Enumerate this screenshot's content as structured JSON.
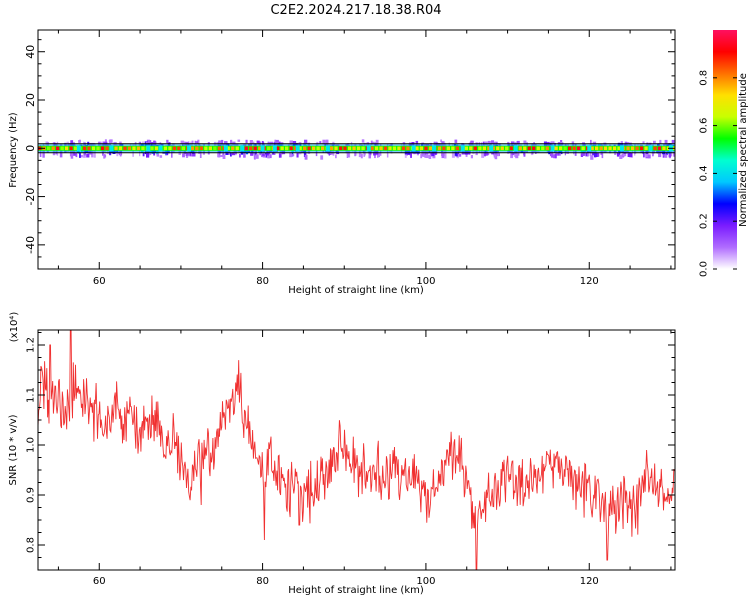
{
  "title": "C2E2.2024.217.18.38.R04",
  "chart_data": [
    {
      "type": "heatmap",
      "xlabel": "Height of straight line (km)",
      "ylabel": "Frequency (Hz)",
      "xlim": [
        52.5,
        130.5
      ],
      "ylim": [
        -50,
        49
      ],
      "xticks": [
        60,
        80,
        100,
        120
      ],
      "yticks": [
        -40,
        -20,
        0,
        20,
        40
      ],
      "colorbar": {
        "label": "Normalized spectral amplitude",
        "range": [
          0.0,
          1.0
        ],
        "ticks": [
          0.0,
          0.2,
          0.4,
          0.6,
          0.8
        ],
        "colormap": [
          "#ffffff",
          "#b06cff",
          "#7a1cff",
          "#0000ff",
          "#00c8ff",
          "#00ffd0",
          "#00ff00",
          "#c8ff00",
          "#ffe000",
          "#ff7000",
          "#ff0000",
          "#ff1060"
        ]
      },
      "ridge": {
        "frequency": 0,
        "amplitude": 0.95
      },
      "blobs": [
        {
          "x": 57.5,
          "amp": 0.55
        },
        {
          "x": 61.5,
          "amp": 0.4
        },
        {
          "x": 66,
          "amp": 0.55
        },
        {
          "x": 67.5,
          "amp": 0.5
        },
        {
          "x": 71,
          "amp": 0.35
        },
        {
          "x": 75.5,
          "amp": 0.45
        },
        {
          "x": 77.5,
          "amp": 0.5
        },
        {
          "x": 80,
          "amp": 0.5
        },
        {
          "x": 81.5,
          "amp": 0.45
        },
        {
          "x": 84.3,
          "amp": 0.6
        },
        {
          "x": 88,
          "amp": 0.35
        },
        {
          "x": 93,
          "amp": 0.3
        },
        {
          "x": 98.5,
          "amp": 0.45
        },
        {
          "x": 101,
          "amp": 0.35
        },
        {
          "x": 104.5,
          "amp": 0.55
        },
        {
          "x": 108,
          "amp": 0.4
        },
        {
          "x": 111,
          "amp": 0.35
        },
        {
          "x": 115.5,
          "amp": 0.5
        },
        {
          "x": 120,
          "amp": 0.55
        },
        {
          "x": 124,
          "amp": 0.45
        },
        {
          "x": 127.5,
          "amp": 0.4
        },
        {
          "x": 130,
          "amp": 0.5
        }
      ]
    },
    {
      "type": "line",
      "xlabel": "Height of straight line (km)",
      "ylabel": "SNR (10 * v/v)",
      "scale_label": "(x10⁴)",
      "xlim": [
        52.5,
        130.5
      ],
      "ylim": [
        0.75,
        1.23
      ],
      "xticks": [
        60,
        80,
        100,
        120
      ],
      "yticks": [
        0.8,
        0.9,
        1.0,
        1.1,
        1.2
      ],
      "ytick_labels": [
        "0.8",
        "0.9",
        "1.0",
        "1.1",
        "1.2"
      ],
      "color": "#f03030",
      "series": [
        {
          "x": [
            52.5,
            53,
            54,
            55,
            56,
            57,
            58,
            59,
            60,
            61,
            62,
            63,
            64,
            65,
            66,
            67,
            68,
            69,
            70,
            71,
            72,
            73,
            74,
            75,
            76,
            77,
            78,
            79,
            80,
            81,
            82,
            83,
            84,
            85,
            86,
            87,
            88,
            89,
            90,
            91,
            92,
            93,
            94,
            95,
            96,
            97,
            98,
            99,
            100,
            101,
            102,
            103,
            104,
            105,
            106,
            107,
            108,
            109,
            110,
            111,
            112,
            113,
            114,
            115,
            116,
            117,
            118,
            119,
            120,
            121,
            122,
            123,
            124,
            125,
            126,
            127,
            128,
            129,
            130,
            130.5
          ],
          "values": [
            1.05,
            1.13,
            1.08,
            1.1,
            1.06,
            1.12,
            1.09,
            1.07,
            1.05,
            1.04,
            1.08,
            1.03,
            1.06,
            1.02,
            1.04,
            1.05,
            0.99,
            1.02,
            0.96,
            0.92,
            0.97,
            0.99,
            0.96,
            1.05,
            1.07,
            1.12,
            1.04,
            0.99,
            0.94,
            0.97,
            0.93,
            0.9,
            0.93,
            0.89,
            0.91,
            0.94,
            0.97,
            0.98,
            1.0,
            0.97,
            0.95,
            0.94,
            0.96,
            0.93,
            0.95,
            0.93,
            0.94,
            0.92,
            0.9,
            0.92,
            0.94,
            0.97,
            1.0,
            0.93,
            0.86,
            0.87,
            0.9,
            0.92,
            0.93,
            0.94,
            0.9,
            0.93,
            0.94,
            0.97,
            0.96,
            0.94,
            0.92,
            0.93,
            0.9,
            0.92,
            0.87,
            0.87,
            0.89,
            0.86,
            0.88,
            0.94,
            0.92,
            0.9,
            0.89,
            0.92
          ]
        }
      ],
      "noise": 0.045,
      "dips": [
        {
          "x": 72.5,
          "value": 0.88
        },
        {
          "x": 80.2,
          "value": 0.81
        },
        {
          "x": 84.5,
          "value": 0.84
        },
        {
          "x": 106.2,
          "value": 0.75
        },
        {
          "x": 122.2,
          "value": 0.77
        }
      ],
      "peaks": [
        {
          "x": 56.5,
          "value": 1.23
        },
        {
          "x": 54.0,
          "value": 1.2
        }
      ]
    }
  ]
}
